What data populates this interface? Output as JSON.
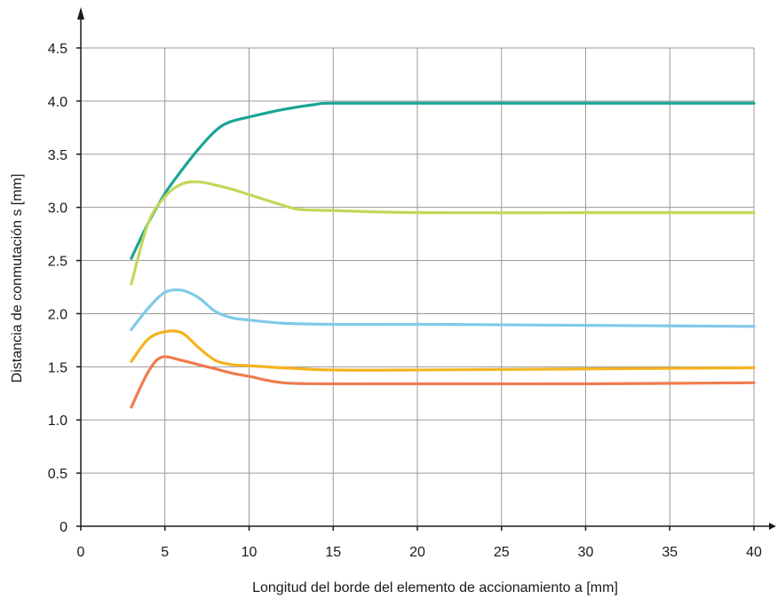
{
  "chart_data": {
    "type": "line",
    "title": "",
    "xlabel": "Longitud del borde del elemento de accionamiento a [mm]",
    "ylabel": "Distancia de conmutación s [mm]",
    "xlim": [
      0,
      40
    ],
    "ylim": [
      0,
      4.5
    ],
    "xticks": [
      0,
      5,
      10,
      15,
      20,
      25,
      30,
      35,
      40
    ],
    "yticks": [
      0,
      0.5,
      1.0,
      1.5,
      2.0,
      2.5,
      3.0,
      3.5,
      4.0,
      4.5
    ],
    "xtick_labels": [
      "0",
      "5",
      "10",
      "15",
      "20",
      "25",
      "30",
      "35",
      "40"
    ],
    "ytick_labels": [
      "0",
      "0.5",
      "1.0",
      "1.5",
      "2.0",
      "2.5",
      "3.0",
      "3.5",
      "4.0",
      "4.5"
    ],
    "grid": true,
    "legend": "none",
    "series": [
      {
        "color": "#1aa595",
        "x": [
          3,
          4,
          5,
          6,
          7,
          8,
          8.8,
          10,
          12,
          14,
          15,
          20,
          30,
          40
        ],
        "y": [
          2.52,
          2.85,
          3.13,
          3.35,
          3.55,
          3.72,
          3.8,
          3.85,
          3.92,
          3.97,
          3.98,
          3.98,
          3.98,
          3.98
        ]
      },
      {
        "color": "#c5d65a",
        "x": [
          3,
          4,
          5,
          6,
          7,
          8,
          9,
          10,
          12,
          13,
          15,
          20,
          30,
          40
        ],
        "y": [
          2.28,
          2.85,
          3.1,
          3.22,
          3.24,
          3.21,
          3.17,
          3.12,
          3.02,
          2.98,
          2.97,
          2.95,
          2.95,
          2.95
        ]
      },
      {
        "color": "#80c9e8",
        "x": [
          3,
          4,
          5,
          6,
          7,
          8,
          9,
          10,
          12,
          15,
          20,
          30,
          40
        ],
        "y": [
          1.85,
          2.05,
          2.2,
          2.22,
          2.15,
          2.02,
          1.96,
          1.94,
          1.91,
          1.9,
          1.9,
          1.89,
          1.88
        ]
      },
      {
        "color": "#f5b31f",
        "x": [
          3,
          4,
          5,
          6,
          7,
          8,
          9,
          10,
          12,
          15,
          20,
          30,
          40
        ],
        "y": [
          1.55,
          1.76,
          1.83,
          1.82,
          1.68,
          1.56,
          1.52,
          1.51,
          1.49,
          1.47,
          1.47,
          1.48,
          1.49
        ]
      },
      {
        "color": "#ee7c4e",
        "x": [
          3,
          4,
          4.8,
          6,
          7,
          8,
          9,
          10,
          12,
          15,
          20,
          30,
          40
        ],
        "y": [
          1.12,
          1.45,
          1.59,
          1.56,
          1.52,
          1.48,
          1.44,
          1.41,
          1.35,
          1.34,
          1.34,
          1.34,
          1.35
        ]
      }
    ]
  }
}
